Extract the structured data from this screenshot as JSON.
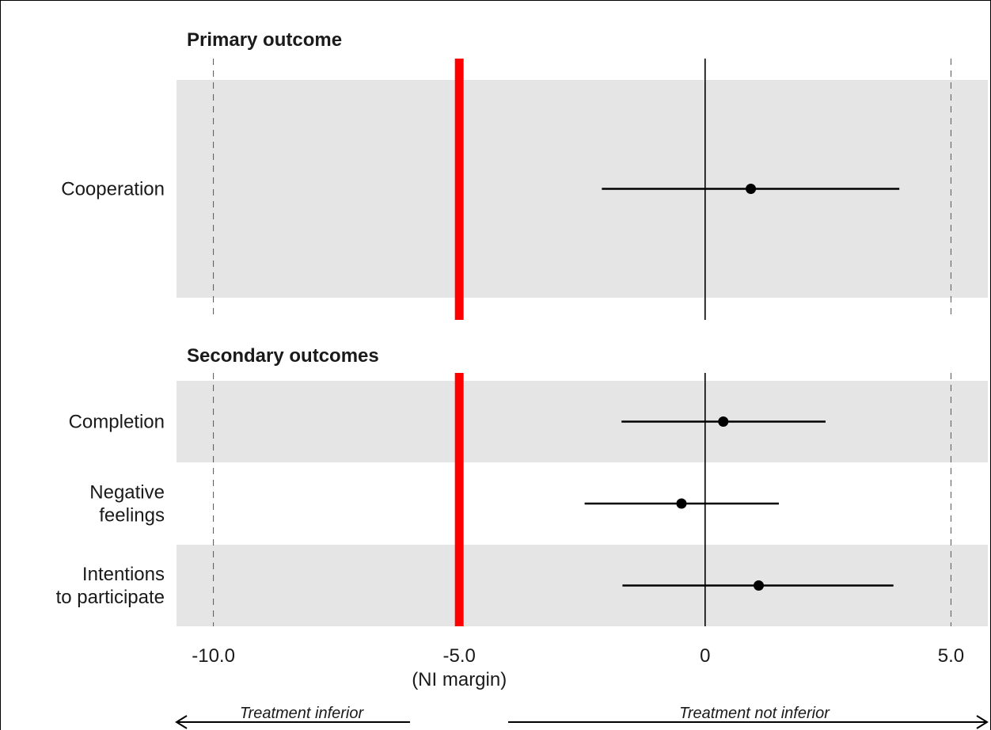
{
  "chart_data": {
    "type": "forest",
    "panels": [
      {
        "title": "Primary outcome",
        "rows": [
          {
            "label": [
              "Cooperation"
            ],
            "estimate": 0.93,
            "lower": -2.1,
            "upper": 3.95
          }
        ]
      },
      {
        "title": "Secondary outcomes",
        "rows": [
          {
            "label": [
              "Completion"
            ],
            "estimate": 0.37,
            "lower": -1.7,
            "upper": 2.45
          },
          {
            "label": [
              "Negative",
              "feelings"
            ],
            "estimate": -0.48,
            "lower": -2.45,
            "upper": 1.5
          },
          {
            "label": [
              "Intentions",
              "to participate"
            ],
            "estimate": 1.09,
            "lower": -1.68,
            "upper": 3.83
          }
        ]
      }
    ],
    "xlim": [
      -10.75,
      5.75
    ],
    "x_ticks": [
      {
        "value": -10,
        "label": "-10.0"
      },
      {
        "value": -5,
        "label": "-5.0"
      },
      {
        "value": 0,
        "label": "0"
      },
      {
        "value": 5,
        "label": "5.0"
      }
    ],
    "ni_margin": {
      "value": -5,
      "label": "(NI margin)",
      "color": "#ff0000"
    },
    "reference_line": 0,
    "dashed_lines": [
      -10,
      5
    ],
    "direction_labels": {
      "left": "Treatment inferior",
      "right": "Treatment not inferior"
    },
    "colors": {
      "band": "#e5e5e5",
      "point": "#000000",
      "margin": "#ff0000"
    }
  }
}
